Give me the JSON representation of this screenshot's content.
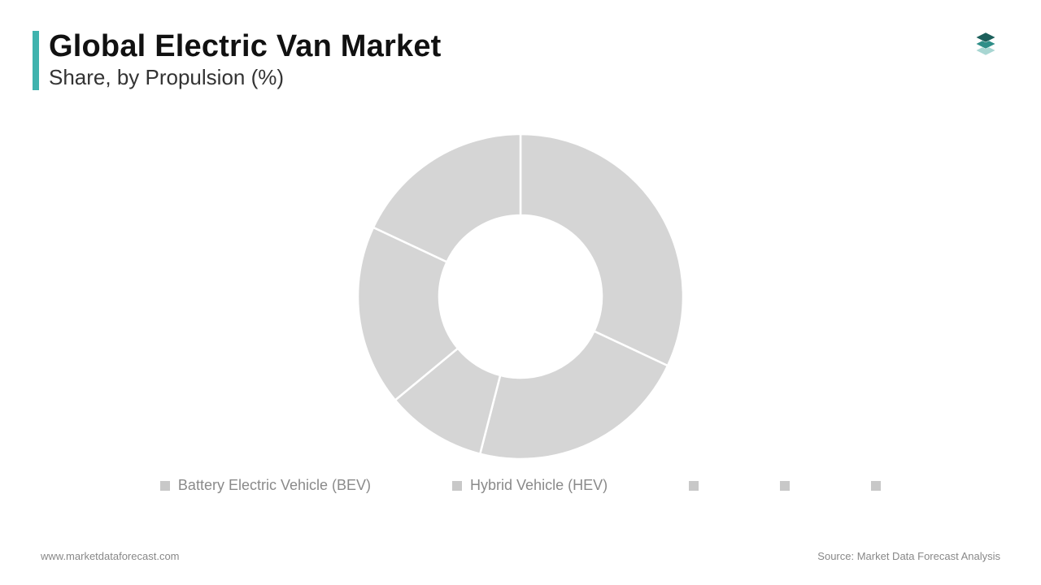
{
  "header": {
    "title": "Global Electric Van Market",
    "subtitle": "Share, by Propulsion (%)",
    "accent_bar_color": "#3fb3ae",
    "title_color": "#111111",
    "subtitle_color": "#333333",
    "title_fontsize": 38,
    "subtitle_fontsize": 26
  },
  "logo": {
    "layer_colors": [
      "#1c5f5b",
      "#2f8e88",
      "#a8d6d2"
    ]
  },
  "chart": {
    "type": "donut",
    "outer_radius": 200,
    "inner_radius": 100,
    "background_color": "#ffffff",
    "slice_color": "#d5d5d5",
    "separator_color": "#ffffff",
    "separator_width": 2.5,
    "slices": [
      {
        "label": "Battery Electric Vehicle (BEV)",
        "value": 32
      },
      {
        "label": "Hybrid Vehicle (HEV)",
        "value": 22
      },
      {
        "label": "",
        "value": 10
      },
      {
        "label": "",
        "value": 18
      },
      {
        "label": "",
        "value": 18
      }
    ]
  },
  "legend": {
    "swatch_color": "#c8c8c8",
    "label_color": "#8a8a8a",
    "label_fontsize": 18,
    "items": [
      {
        "label": "Battery Electric Vehicle (BEV)"
      },
      {
        "label": "Hybrid Vehicle (HEV)"
      },
      {
        "label": ""
      },
      {
        "label": ""
      },
      {
        "label": ""
      }
    ]
  },
  "footer": {
    "website": "www.marketdataforecast.com",
    "source": "Source: Market Data Forecast Analysis",
    "text_color": "#888888",
    "fontsize": 13
  }
}
